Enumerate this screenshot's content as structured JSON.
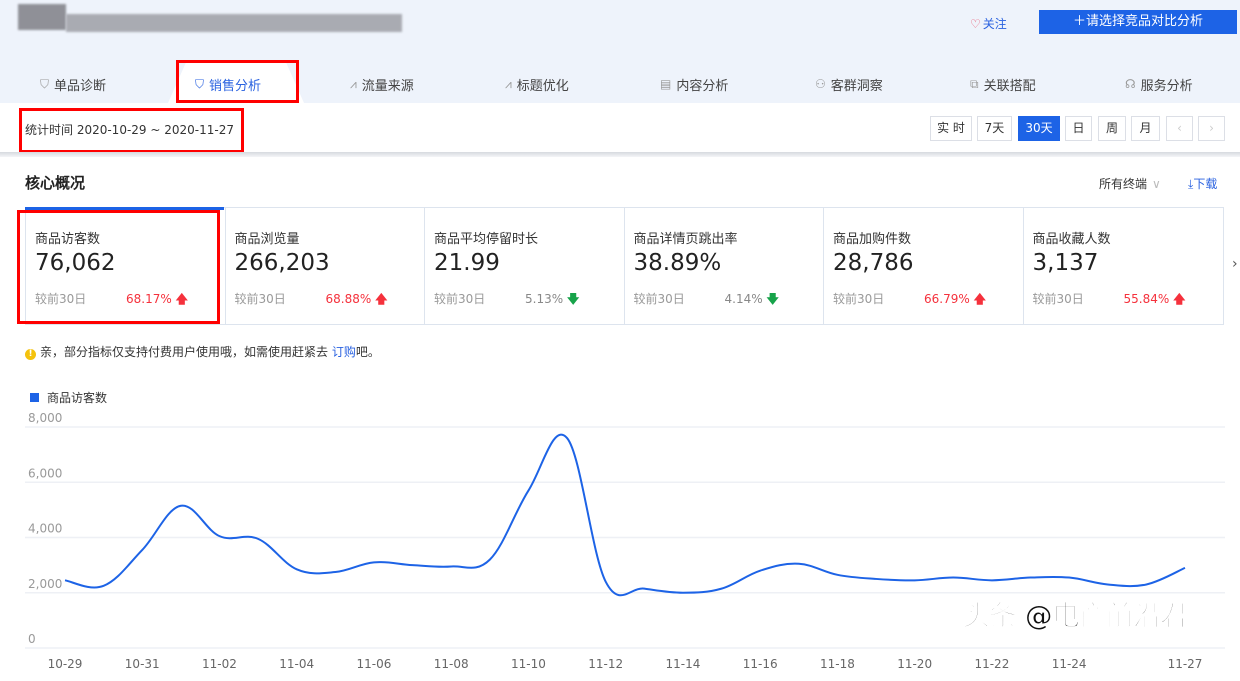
{
  "header": {
    "follow_label": "关注",
    "compare_label": "请选择竞品对比分析"
  },
  "tabs": [
    {
      "label": "单品诊断",
      "icon": "bag-icon"
    },
    {
      "label": "销售分析",
      "icon": "bag-icon",
      "active": true
    },
    {
      "label": "流量来源",
      "icon": "line-chart-icon"
    },
    {
      "label": "标题优化",
      "icon": "line-chart-icon"
    },
    {
      "label": "内容分析",
      "icon": "document-icon"
    },
    {
      "label": "客群洞察",
      "icon": "users-icon"
    },
    {
      "label": "关联搭配",
      "icon": "link-icon"
    },
    {
      "label": "服务分析",
      "icon": "headset-icon"
    }
  ],
  "date_range": "统计时间 2020-10-29 ~ 2020-11-27",
  "time_buttons": [
    {
      "label": "实 时"
    },
    {
      "label": "7天"
    },
    {
      "label": "30天",
      "active": true
    },
    {
      "label": "日"
    },
    {
      "label": "周"
    },
    {
      "label": "月"
    },
    {
      "label": "‹"
    },
    {
      "label": "›"
    }
  ],
  "core": {
    "title": "核心概况",
    "terminal": "所有终端",
    "download": "下载"
  },
  "metrics": [
    {
      "label": "商品访客数",
      "value": "76,062",
      "compare": "较前30日",
      "change": "68.17%",
      "direction": "up"
    },
    {
      "label": "商品浏览量",
      "value": "266,203",
      "compare": "较前30日",
      "change": "68.88%",
      "direction": "up"
    },
    {
      "label": "商品平均停留时长",
      "value": "21.99",
      "compare": "较前30日",
      "change": "5.13%",
      "direction": "down"
    },
    {
      "label": "商品详情页跳出率",
      "value": "38.89%",
      "compare": "较前30日",
      "change": "4.14%",
      "direction": "down"
    },
    {
      "label": "商品加购件数",
      "value": "28,786",
      "compare": "较前30日",
      "change": "66.79%",
      "direction": "up"
    },
    {
      "label": "商品收藏人数",
      "value": "3,137",
      "compare": "较前30日",
      "change": "55.84%",
      "direction": "up"
    }
  ],
  "notice": {
    "text": "亲，部分指标仅支持付费用户使用哦，如需使用赶紧去 ",
    "link": "订购",
    "suffix": "吧。"
  },
  "watermark": "头条 @电商前沿君",
  "colors": {
    "accent": "#1d63e6",
    "up": "#f5313c",
    "down": "#17a34a"
  },
  "chart_data": {
    "type": "line",
    "ylim": [
      0,
      8000
    ],
    "yticks": [
      "0",
      "2,000",
      "4,000",
      "6,000",
      "8,000"
    ],
    "x": [
      "10-29",
      "10-30",
      "10-31",
      "11-01",
      "11-02",
      "11-03",
      "11-04",
      "11-05",
      "11-06",
      "11-07",
      "11-08",
      "11-09",
      "11-10",
      "11-11",
      "11-12",
      "11-13",
      "11-14",
      "11-15",
      "11-16",
      "11-17",
      "11-18",
      "11-19",
      "11-20",
      "11-21",
      "11-22",
      "11-23",
      "11-24",
      "11-25",
      "11-26",
      "11-27"
    ],
    "xtick_labels": [
      "10-29",
      "10-31",
      "11-02",
      "11-04",
      "11-06",
      "11-08",
      "11-10",
      "11-12",
      "11-14",
      "11-16",
      "11-18",
      "11-20",
      "11-22",
      "11-24",
      "11-27"
    ],
    "grid": true,
    "legend": "top-left",
    "series": [
      {
        "name": "商品访客数",
        "color": "#1d63e6",
        "values": [
          2450,
          2250,
          3550,
          5150,
          4050,
          3950,
          2850,
          2750,
          3100,
          3000,
          2950,
          3200,
          5700,
          7600,
          2400,
          2150,
          2000,
          2150,
          2800,
          3050,
          2650,
          2500,
          2450,
          2550,
          2450,
          2550,
          2550,
          2300,
          2300,
          2900
        ]
      }
    ]
  }
}
